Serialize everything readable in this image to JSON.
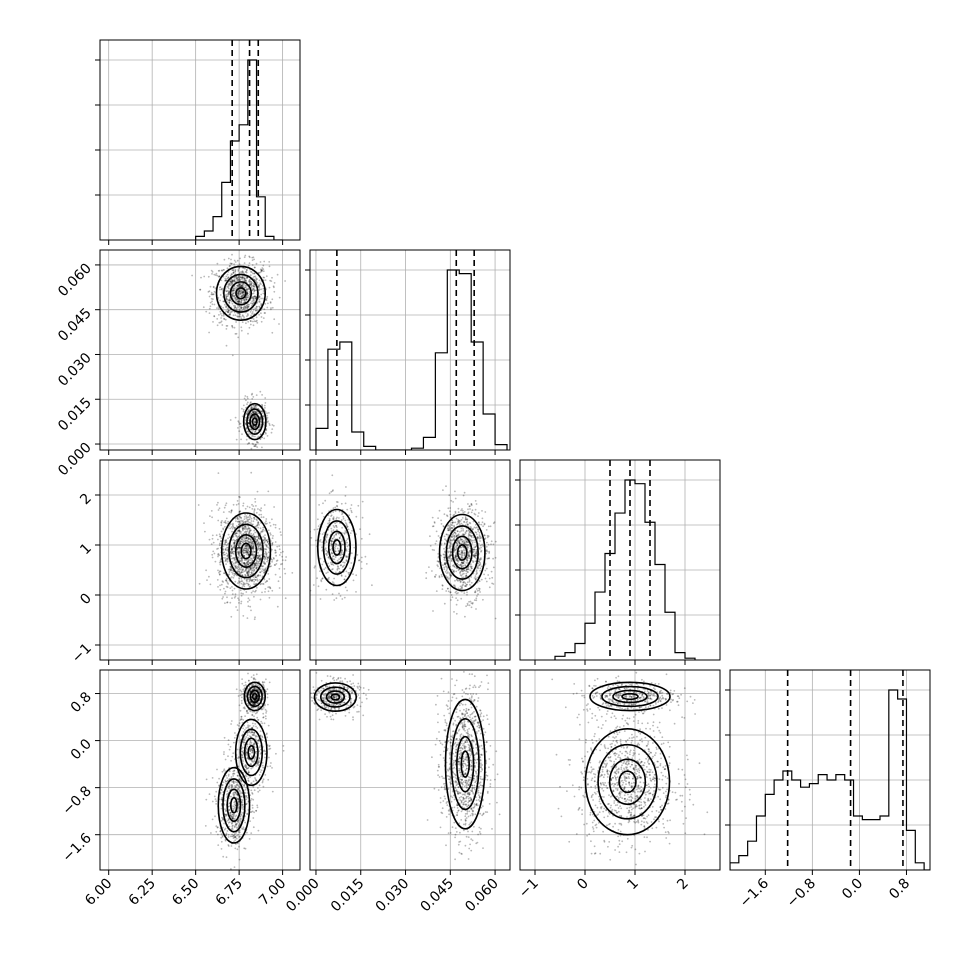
{
  "chart_data": {
    "type": "corner",
    "grid": true,
    "parameters": [
      {
        "range": [
          5.95,
          7.1
        ],
        "ticks": [
          6.0,
          6.25,
          6.5,
          6.75,
          7.0
        ],
        "tick_labels": [
          "6.00",
          "6.25",
          "6.50",
          "6.75",
          "7.00"
        ],
        "hist": {
          "edges": [
            6.5,
            6.55,
            6.6,
            6.65,
            6.7,
            6.75,
            6.8,
            6.85,
            6.9,
            6.95,
            7.0
          ],
          "counts": [
            0.02,
            0.05,
            0.13,
            0.32,
            0.55,
            0.64,
            1.0,
            0.24,
            0.02,
            0.0
          ]
        },
        "quantiles": [
          6.71,
          6.81,
          6.86
        ]
      },
      {
        "range": [
          -0.002,
          0.065
        ],
        "ticks": [
          0.0,
          0.015,
          0.03,
          0.045,
          0.06
        ],
        "tick_labels": [
          "0.000",
          "0.015",
          "0.030",
          "0.045",
          "0.060"
        ],
        "hist": {
          "edges": [
            0.0,
            0.004,
            0.008,
            0.012,
            0.016,
            0.02,
            0.024,
            0.028,
            0.032,
            0.036,
            0.04,
            0.044,
            0.048,
            0.052,
            0.056,
            0.06,
            0.064
          ],
          "counts": [
            0.12,
            0.56,
            0.6,
            0.1,
            0.02,
            0.0,
            0.0,
            0.0,
            0.01,
            0.07,
            0.54,
            1.0,
            0.98,
            0.6,
            0.2,
            0.03
          ]
        },
        "quantiles": [
          0.007,
          0.047,
          0.053
        ]
      },
      {
        "range": [
          -1.3,
          2.7
        ],
        "ticks": [
          -1,
          0,
          1,
          2
        ],
        "tick_labels": [
          "−1",
          "0",
          "1",
          "2"
        ],
        "hist": {
          "edges": [
            -0.6,
            -0.4,
            -0.2,
            0.0,
            0.2,
            0.4,
            0.6,
            0.8,
            1.0,
            1.2,
            1.4,
            1.6,
            1.8,
            2.0,
            2.2
          ],
          "counts": [
            0.02,
            0.04,
            0.09,
            0.2,
            0.37,
            0.58,
            0.8,
            0.98,
            0.96,
            0.75,
            0.52,
            0.26,
            0.04,
            0.01
          ]
        },
        "quantiles": [
          0.5,
          0.9,
          1.3
        ]
      },
      {
        "range": [
          -2.2,
          1.2
        ],
        "ticks": [
          -1.6,
          -0.8,
          0.0,
          0.8
        ],
        "tick_labels": [
          "−1.6",
          "−0.8",
          "0.0",
          "0.8"
        ],
        "hist": {
          "edges": [
            -2.2,
            -2.05,
            -1.9,
            -1.75,
            -1.6,
            -1.45,
            -1.3,
            -1.15,
            -1.0,
            -0.85,
            -0.7,
            -0.55,
            -0.4,
            -0.25,
            -0.1,
            0.05,
            0.2,
            0.35,
            0.5,
            0.65,
            0.8,
            0.95,
            1.1,
            1.2
          ],
          "counts": [
            0.04,
            0.08,
            0.16,
            0.3,
            0.42,
            0.5,
            0.55,
            0.5,
            0.46,
            0.48,
            0.53,
            0.5,
            0.53,
            0.5,
            0.3,
            0.28,
            0.28,
            0.3,
            1.0,
            0.95,
            0.22,
            0.04,
            0.0
          ]
        },
        "quantiles": [
          -1.22,
          -0.15,
          0.74
        ]
      }
    ],
    "pairs": [
      {
        "row": 1,
        "col": 0,
        "modes": [
          {
            "cx": 6.76,
            "cy": 0.0505,
            "sx": 0.07,
            "sy": 0.0045,
            "w": 0.7
          },
          {
            "cx": 6.84,
            "cy": 0.0075,
            "sx": 0.032,
            "sy": 0.003,
            "w": 0.3
          }
        ]
      },
      {
        "row": 2,
        "col": 0,
        "modes": [
          {
            "cx": 6.79,
            "cy": 0.88,
            "sx": 0.07,
            "sy": 0.38,
            "w": 1.0
          }
        ]
      },
      {
        "row": 2,
        "col": 1,
        "modes": [
          {
            "cx": 0.007,
            "cy": 0.95,
            "sx": 0.0032,
            "sy": 0.38,
            "w": 0.3
          },
          {
            "cx": 0.049,
            "cy": 0.85,
            "sx": 0.0038,
            "sy": 0.38,
            "w": 0.7
          }
        ]
      },
      {
        "row": 3,
        "col": 0,
        "modes": [
          {
            "cx": 6.84,
            "cy": 0.75,
            "sx": 0.03,
            "sy": 0.12,
            "w": 0.3
          },
          {
            "cx": 6.82,
            "cy": -0.2,
            "sx": 0.045,
            "sy": 0.28,
            "w": 0.3
          },
          {
            "cx": 6.72,
            "cy": -1.1,
            "sx": 0.045,
            "sy": 0.32,
            "w": 0.4
          }
        ]
      },
      {
        "row": 3,
        "col": 1,
        "modes": [
          {
            "cx": 0.0065,
            "cy": 0.74,
            "sx": 0.0035,
            "sy": 0.12,
            "w": 0.3
          },
          {
            "cx": 0.05,
            "cy": -0.4,
            "sx": 0.0033,
            "sy": 0.55,
            "w": 0.7
          }
        ]
      },
      {
        "row": 3,
        "col": 2,
        "modes": [
          {
            "cx": 0.9,
            "cy": 0.75,
            "sx": 0.4,
            "sy": 0.12,
            "w": 0.3
          },
          {
            "cx": 0.85,
            "cy": -0.7,
            "sx": 0.42,
            "sy": 0.45,
            "w": 0.7
          }
        ]
      }
    ]
  }
}
